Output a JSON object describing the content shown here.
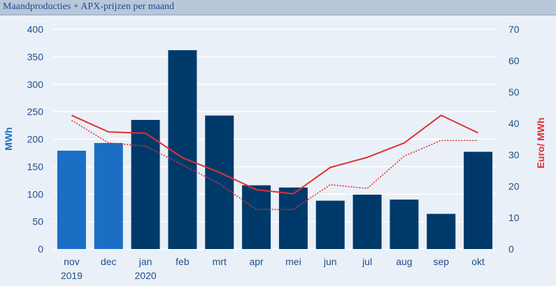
{
  "header": {
    "title": "Maandproducties + APX-prijzen per maand"
  },
  "chart_data": {
    "type": "bar",
    "title": "Maandproducties + APX-prijzen per maand",
    "ylabel": "MWh",
    "y2label": "Euro/ MWh",
    "ylim": [
      0,
      400
    ],
    "y2lim": [
      0,
      70
    ],
    "yticks": [
      "0",
      "50",
      "100",
      "150",
      "200",
      "250",
      "300",
      "350",
      "400"
    ],
    "y2ticks": [
      "0",
      "10",
      "20",
      "30",
      "40",
      "50",
      "60",
      "70"
    ],
    "categories": [
      {
        "label": "nov",
        "sub": "2019"
      },
      {
        "label": "dec",
        "sub": ""
      },
      {
        "label": "jan",
        "sub": "2020"
      },
      {
        "label": "feb",
        "sub": ""
      },
      {
        "label": "mrt",
        "sub": ""
      },
      {
        "label": "apr",
        "sub": ""
      },
      {
        "label": "mei",
        "sub": ""
      },
      {
        "label": "jun",
        "sub": ""
      },
      {
        "label": "jul",
        "sub": ""
      },
      {
        "label": "aug",
        "sub": ""
      },
      {
        "label": "sep",
        "sub": ""
      },
      {
        "label": "okt",
        "sub": ""
      }
    ],
    "grid": true,
    "series": [
      {
        "type": "bar",
        "axis": "left",
        "values": [
          179,
          193,
          235,
          362,
          243,
          116,
          112,
          88,
          99,
          90,
          64,
          177
        ],
        "colors": [
          "#1a6fc4",
          "#1a6fc4",
          "#003a6b",
          "#003a6b",
          "#003a6b",
          "#003a6b",
          "#003a6b",
          "#003a6b",
          "#003a6b",
          "#003a6b",
          "#003a6b",
          "#003a6b"
        ]
      },
      {
        "type": "line",
        "axis": "right",
        "style": "solid",
        "color": "#e03034",
        "values": [
          42.6,
          37.3,
          36.9,
          29.1,
          24.4,
          18.9,
          17.6,
          26.0,
          29.2,
          33.8,
          42.6,
          37.0
        ]
      },
      {
        "type": "line",
        "axis": "right",
        "style": "dotted",
        "color": "#e03034",
        "values": [
          41.0,
          33.8,
          32.8,
          26.8,
          20.8,
          12.6,
          12.6,
          20.5,
          19.3,
          29.6,
          34.6,
          34.6
        ]
      }
    ]
  },
  "colors": {
    "background": "#eaf0f7",
    "header": "#b8c7d9",
    "grid": "#ffffff",
    "tick_text": "#1f4e8c",
    "left_axis_title": "#1a6fc4",
    "right_axis_title": "#e03034"
  }
}
